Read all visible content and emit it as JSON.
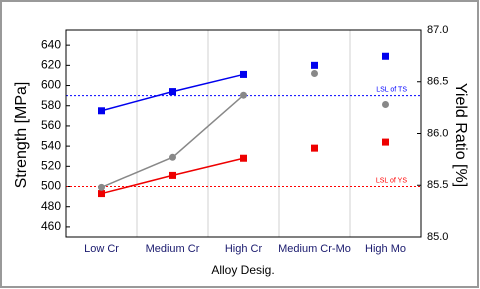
{
  "chart_data": {
    "type": "line",
    "xlabel": "Alloy Desig.",
    "ylabel": "Strength [MPa]",
    "y2label": "Yield Ratio [%]",
    "categories": [
      "Low Cr",
      "Medium Cr",
      "High Cr",
      "Medium Cr-Mo",
      "High Mo"
    ],
    "series": [
      {
        "color": "#0000ee",
        "marker": "square",
        "values": [
          575,
          594,
          611,
          620,
          629
        ]
      },
      {
        "color": "#ee0000",
        "marker": "square",
        "values": [
          493,
          511,
          528,
          538,
          544
        ]
      },
      {
        "color": "#888888",
        "marker": "circle",
        "axis": "y2",
        "values": [
          85.48,
          85.77,
          86.37,
          86.58,
          86.28
        ]
      }
    ],
    "line_points": 3,
    "ylim": [
      450,
      655
    ],
    "yticks": [
      460,
      480,
      500,
      520,
      540,
      560,
      580,
      600,
      620,
      640
    ],
    "y2lim": [
      85,
      87
    ],
    "y2ticks": [
      {
        "value": 85,
        "label": "85.0"
      },
      {
        "value": 85.5,
        "label": "85.5"
      },
      {
        "value": 86,
        "label": "86.0"
      },
      {
        "value": 86.5,
        "label": "86.5"
      },
      {
        "value": 87,
        "label": "87.0"
      }
    ],
    "reference_lines": [
      {
        "value": 590,
        "label": "LSL of TS",
        "color": "#0000ff"
      },
      {
        "value": 500,
        "label": "LSL of YS",
        "color": "#ff0000"
      }
    ],
    "grid": "x"
  }
}
